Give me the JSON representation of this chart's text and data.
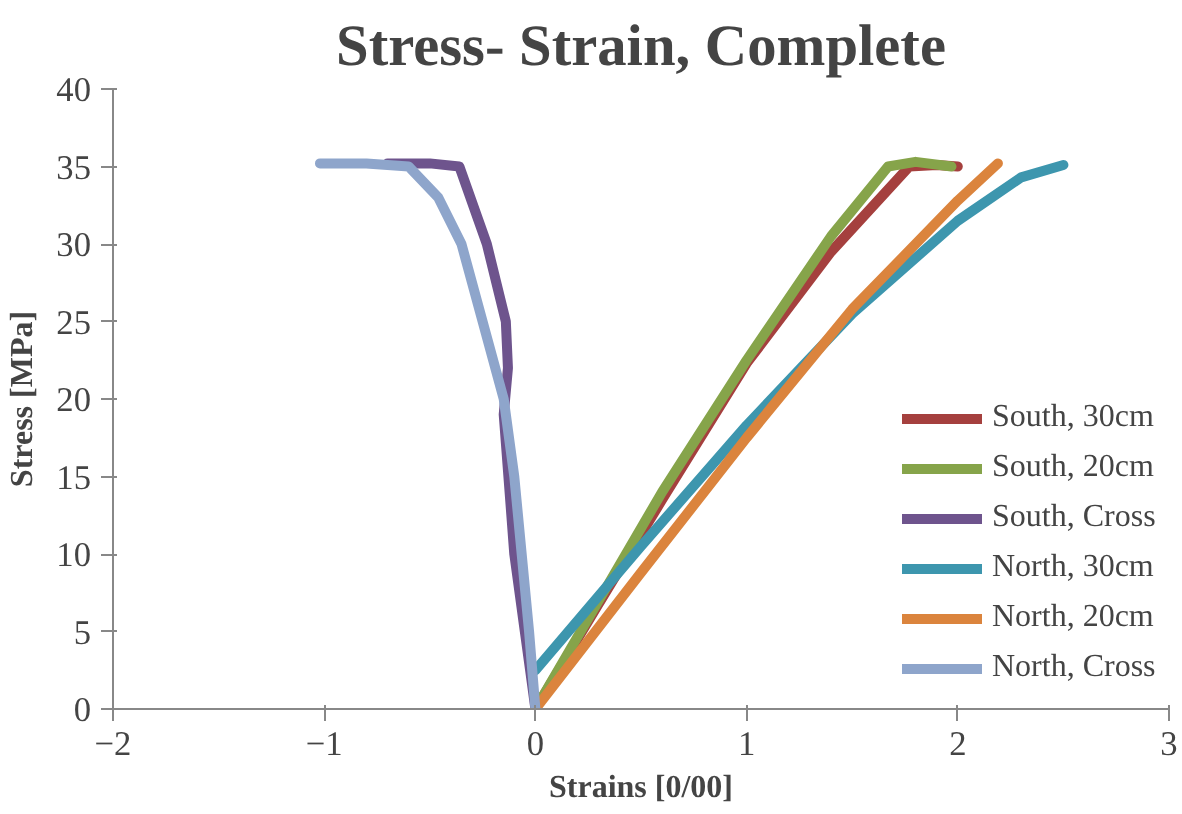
{
  "chart_data": {
    "type": "line",
    "title": "Stress- Strain, Complete",
    "xlabel": "Strains [0/00]",
    "ylabel": "Stress [MPa]",
    "xlim": [
      -2,
      3
    ],
    "ylim": [
      0,
      40
    ],
    "xticks": [
      -2,
      -1,
      0,
      1,
      2,
      3
    ],
    "yticks": [
      0,
      5,
      10,
      15,
      20,
      25,
      30,
      35,
      40
    ],
    "grid": false,
    "legend": "right",
    "marker": "none",
    "line_style": "solid",
    "series": [
      {
        "name": "South, 30cm",
        "color": "#a5403e",
        "x": [
          0,
          0.3,
          0.6,
          1,
          1.4,
          1.77,
          1.9,
          2.0
        ],
        "values": [
          0,
          6.8,
          13.5,
          22.3,
          29.5,
          35,
          35.1,
          35
        ]
      },
      {
        "name": "South, 20cm",
        "color": "#86a44a",
        "x": [
          0,
          0.3,
          0.6,
          1,
          1.4,
          1.67,
          1.8,
          1.97
        ],
        "values": [
          0,
          7,
          14,
          22.5,
          30.5,
          35,
          35.3,
          35
        ]
      },
      {
        "name": "South, Cross",
        "color": "#6e548d",
        "x": [
          0,
          -0.05,
          -0.1,
          -0.15,
          -0.13,
          -0.14,
          -0.23,
          -0.36,
          -0.5,
          -0.7
        ],
        "values": [
          0,
          5,
          10,
          19,
          22,
          25,
          30,
          35,
          35.2,
          35.2
        ]
      },
      {
        "name": "North, 30cm",
        "color": "#3d96ae",
        "x": [
          0,
          0.5,
          1,
          1.5,
          2,
          2.3,
          2.5
        ],
        "values": [
          2.5,
          10.5,
          18.3,
          25.5,
          31.5,
          34.3,
          35.1
        ]
      },
      {
        "name": "North, 20cm",
        "color": "#db843d",
        "x": [
          0,
          0.5,
          1,
          1.5,
          2,
          2.19
        ],
        "values": [
          0,
          8.8,
          17.5,
          25.8,
          32.8,
          35.2
        ]
      },
      {
        "name": "North, Cross",
        "color": "#8ea5cb",
        "x": [
          0,
          -0.03,
          -0.1,
          -0.15,
          -0.25,
          -0.35,
          -0.46,
          -0.6,
          -0.8,
          -1.02
        ],
        "values": [
          0,
          5,
          15,
          20,
          25,
          30,
          33,
          35,
          35.2,
          35.2
        ]
      }
    ]
  }
}
